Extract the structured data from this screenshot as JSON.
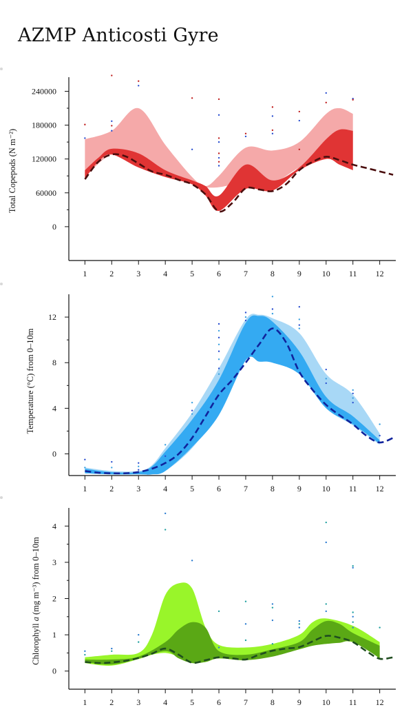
{
  "title": "AZMP Anticosti Gyre",
  "chart_data": [
    {
      "id": "copepods",
      "type": "area",
      "ylabel": "Total Copepods (N m⁻²)",
      "xlabel": "",
      "xlim": [
        0.4,
        12.6
      ],
      "ylim": [
        -60000,
        265000
      ],
      "x_ticks": [
        1,
        2,
        3,
        4,
        5,
        6,
        7,
        8,
        9,
        10,
        11,
        12
      ],
      "y_ticks": [
        0,
        60000,
        120000,
        180000,
        240000
      ],
      "y_tick_labels": [
        "0",
        "60000",
        "120000",
        "180000",
        "240000"
      ],
      "colors": {
        "outer": "#f5a9a9",
        "inner": "#e03434",
        "line": "#4a0e0e",
        "points": [
          "#c02020",
          "#2a4fd0"
        ]
      },
      "outer_band": {
        "x": [
          1,
          2,
          3,
          4,
          5,
          5.5,
          6,
          7,
          8,
          9,
          10,
          10.5,
          11
        ],
        "upper": [
          155000,
          170000,
          210000,
          145000,
          88000,
          72000,
          90000,
          140000,
          135000,
          150000,
          200000,
          210000,
          200000
        ],
        "lower": [
          88000,
          128000,
          115000,
          93000,
          75000,
          70000,
          70000,
          78000,
          77000,
          105000,
          125000,
          118000,
          100000
        ]
      },
      "inner_band": {
        "x": [
          1,
          1.5,
          2,
          3,
          4,
          5,
          5.5,
          6,
          7,
          8,
          9,
          10,
          10.5,
          11
        ],
        "upper": [
          100000,
          122000,
          138000,
          130000,
          100000,
          82000,
          72000,
          55000,
          110000,
          82000,
          105000,
          155000,
          172000,
          170000
        ],
        "lower": [
          85000,
          115000,
          128000,
          105000,
          88000,
          75000,
          55000,
          28000,
          67000,
          64000,
          100000,
          120000,
          110000,
          100000
        ]
      },
      "mean_line": {
        "x": [
          1,
          1.5,
          2,
          2.5,
          3,
          3.5,
          4,
          4.5,
          5,
          5.5,
          6,
          6.5,
          7,
          7.5,
          8,
          8.5,
          9,
          9.5,
          10,
          10.5,
          11,
          11.5,
          12,
          12.5
        ],
        "y": [
          84000,
          115000,
          128000,
          125000,
          112000,
          98000,
          92000,
          83000,
          75000,
          57000,
          27000,
          42000,
          68000,
          66000,
          63000,
          75000,
          100000,
          115000,
          124000,
          118000,
          110000,
          104000,
          98000,
          92000
        ]
      },
      "points": [
        {
          "x": 1,
          "y": 181000
        },
        {
          "x": 1,
          "y": 157000
        },
        {
          "x": 2,
          "y": 268000
        },
        {
          "x": 2,
          "y": 187000
        },
        {
          "x": 2,
          "y": 179000
        },
        {
          "x": 2,
          "y": 170000
        },
        {
          "x": 3,
          "y": 258000
        },
        {
          "x": 3,
          "y": 250000
        },
        {
          "x": 5,
          "y": 228000
        },
        {
          "x": 5,
          "y": 137000
        },
        {
          "x": 6,
          "y": 226000
        },
        {
          "x": 6,
          "y": 198000
        },
        {
          "x": 6,
          "y": 157000
        },
        {
          "x": 6,
          "y": 150000
        },
        {
          "x": 6,
          "y": 130000
        },
        {
          "x": 6,
          "y": 122000
        },
        {
          "x": 6,
          "y": 115000
        },
        {
          "x": 6,
          "y": 108000
        },
        {
          "x": 7,
          "y": 165000
        },
        {
          "x": 7,
          "y": 160000
        },
        {
          "x": 8,
          "y": 212000
        },
        {
          "x": 8,
          "y": 196000
        },
        {
          "x": 8,
          "y": 171000
        },
        {
          "x": 8,
          "y": 165000
        },
        {
          "x": 9,
          "y": 204000
        },
        {
          "x": 9,
          "y": 188000
        },
        {
          "x": 9,
          "y": 137000
        },
        {
          "x": 10,
          "y": 237000
        },
        {
          "x": 10,
          "y": 220000
        },
        {
          "x": 11,
          "y": 227000
        },
        {
          "x": 11,
          "y": 225000
        }
      ]
    },
    {
      "id": "temperature",
      "type": "area",
      "ylabel": "Temperature (°C) from 0–10m",
      "xlabel": "",
      "xlim": [
        0.4,
        12.6
      ],
      "ylim": [
        -1.9,
        14
      ],
      "x_ticks": [
        1,
        2,
        3,
        4,
        5,
        6,
        7,
        8,
        9,
        10,
        11,
        12
      ],
      "y_ticks": [
        0,
        4,
        8,
        12
      ],
      "y_tick_labels": [
        "0",
        "4",
        "8",
        "12"
      ],
      "colors": {
        "outer": "#a8d8f6",
        "inner": "#34aaf2",
        "line": "#10239c",
        "points": [
          "#2a4fd0",
          "#3aa0e0"
        ]
      },
      "outer_band": {
        "x": [
          1,
          2,
          3,
          3.5,
          4,
          5,
          6,
          7,
          7.5,
          8,
          9,
          10,
          11,
          12
        ],
        "upper": [
          -1.2,
          -1.5,
          -1.5,
          -1.0,
          0.5,
          3.6,
          7.5,
          11.8,
          12.2,
          11.9,
          10.6,
          7.0,
          5.2,
          1.8
        ],
        "lower": [
          -1.7,
          -1.8,
          -1.8,
          -1.8,
          -1.5,
          0.5,
          3.8,
          8.5,
          8.1,
          8.0,
          7.0,
          4.0,
          2.5,
          0.8
        ]
      },
      "inner_band": {
        "x": [
          1,
          2,
          3,
          3.5,
          4,
          5,
          6,
          7,
          7.5,
          8,
          9,
          10,
          11,
          12
        ],
        "upper": [
          -1.3,
          -1.6,
          -1.6,
          -1.1,
          0.2,
          3.0,
          6.5,
          11.5,
          12.1,
          11.6,
          9.0,
          5.0,
          3.3,
          1.2
        ],
        "lower": [
          -1.7,
          -1.8,
          -1.8,
          -1.8,
          -1.5,
          0.6,
          3.4,
          8.2,
          8.1,
          8.0,
          7.0,
          4.0,
          2.6,
          0.9
        ]
      },
      "mean_line": {
        "x": [
          1,
          1.5,
          2,
          2.5,
          3,
          3.5,
          4,
          4.5,
          5,
          5.5,
          6,
          6.5,
          7,
          7.5,
          8,
          8.5,
          9,
          9.5,
          10,
          10.5,
          11,
          11.5,
          12,
          12.5
        ],
        "y": [
          -1.5,
          -1.65,
          -1.7,
          -1.7,
          -1.6,
          -1.3,
          -0.8,
          0.0,
          1.4,
          3.3,
          5.2,
          6.5,
          8.0,
          9.6,
          11.0,
          9.8,
          7.2,
          5.6,
          4.3,
          3.4,
          2.6,
          1.6,
          1.0,
          1.4
        ]
      },
      "points": [
        {
          "x": 1,
          "y": -0.5
        },
        {
          "x": 1,
          "y": -1.2
        },
        {
          "x": 2,
          "y": -0.7
        },
        {
          "x": 2,
          "y": -1.2
        },
        {
          "x": 3,
          "y": -0.8
        },
        {
          "x": 3,
          "y": -1.1
        },
        {
          "x": 3,
          "y": -1.4
        },
        {
          "x": 4,
          "y": 0.8
        },
        {
          "x": 4,
          "y": -0.2
        },
        {
          "x": 5,
          "y": 4.5
        },
        {
          "x": 5,
          "y": 3.8
        },
        {
          "x": 5,
          "y": 3.5
        },
        {
          "x": 6,
          "y": 11.4
        },
        {
          "x": 6,
          "y": 10.8
        },
        {
          "x": 6,
          "y": 10.2
        },
        {
          "x": 6,
          "y": 9.6
        },
        {
          "x": 6,
          "y": 9.0
        },
        {
          "x": 6,
          "y": 8.3
        },
        {
          "x": 6,
          "y": 7.5
        },
        {
          "x": 6,
          "y": 7.0
        },
        {
          "x": 7,
          "y": 12.4
        },
        {
          "x": 7,
          "y": 12.0
        },
        {
          "x": 7,
          "y": 11.7
        },
        {
          "x": 8,
          "y": 13.8
        },
        {
          "x": 8,
          "y": 12.7
        },
        {
          "x": 8,
          "y": 12.3
        },
        {
          "x": 9,
          "y": 12.9
        },
        {
          "x": 9,
          "y": 11.8
        },
        {
          "x": 9,
          "y": 11.3
        },
        {
          "x": 9,
          "y": 11.0
        },
        {
          "x": 10,
          "y": 7.4
        },
        {
          "x": 10,
          "y": 6.6
        },
        {
          "x": 10,
          "y": 6.2
        },
        {
          "x": 11,
          "y": 5.6
        },
        {
          "x": 11,
          "y": 5.3
        },
        {
          "x": 11,
          "y": 4.9
        },
        {
          "x": 11,
          "y": 4.5
        },
        {
          "x": 12,
          "y": 2.6
        },
        {
          "x": 12,
          "y": 1.6
        }
      ]
    },
    {
      "id": "chlorophyll",
      "type": "area",
      "ylabel_parts": [
        "Chlorophyll ",
        "a",
        " (mg m⁻³) from 0–10m"
      ],
      "xlabel": "",
      "xlim": [
        0.4,
        12.6
      ],
      "ylim": [
        -0.5,
        4.5
      ],
      "x_ticks": [
        1,
        2,
        3,
        4,
        5,
        6,
        7,
        8,
        9,
        10,
        11,
        12
      ],
      "x_tick_labels": [
        "1",
        "2",
        "3",
        "4",
        "5",
        "6",
        "7",
        "8",
        "9",
        "10",
        "11",
        "12"
      ],
      "y_ticks": [
        0,
        1,
        2,
        3,
        4
      ],
      "y_tick_labels": [
        "0",
        "1",
        "2",
        "3",
        "4"
      ],
      "colors": {
        "outer": "#99f52a",
        "inner": "#5aa815",
        "line": "#1f4d1f",
        "points": [
          "#2a7bd0",
          "#20a0a0"
        ]
      },
      "outer_band": {
        "x": [
          1,
          2,
          3,
          3.5,
          4,
          4.5,
          5,
          5.5,
          6,
          7,
          8,
          9,
          9.5,
          10,
          11,
          12
        ],
        "upper": [
          0.38,
          0.45,
          0.5,
          1.0,
          2.1,
          2.42,
          2.28,
          1.2,
          0.72,
          0.65,
          0.75,
          1.0,
          1.35,
          1.45,
          1.25,
          0.8
        ],
        "lower": [
          0.22,
          0.15,
          0.33,
          0.45,
          0.5,
          0.4,
          0.25,
          0.25,
          0.35,
          0.3,
          0.42,
          0.6,
          0.7,
          0.75,
          0.8,
          0.35
        ]
      },
      "inner_band": {
        "x": [
          1,
          2,
          3,
          4,
          4.5,
          5,
          5.5,
          6,
          7,
          8,
          9,
          9.5,
          10,
          10.5,
          11,
          12
        ],
        "upper": [
          0.32,
          0.32,
          0.4,
          0.8,
          1.15,
          1.35,
          1.2,
          0.55,
          0.45,
          0.6,
          0.8,
          1.15,
          1.38,
          1.3,
          1.05,
          0.7
        ],
        "lower": [
          0.25,
          0.18,
          0.34,
          0.55,
          0.35,
          0.22,
          0.25,
          0.35,
          0.3,
          0.4,
          0.6,
          0.7,
          0.75,
          0.78,
          0.8,
          0.36
        ]
      },
      "mean_line": {
        "x": [
          1,
          1.5,
          2,
          2.5,
          3,
          3.5,
          4,
          4.5,
          5,
          5.5,
          6,
          6.5,
          7,
          7.5,
          8,
          8.5,
          9,
          9.5,
          10,
          10.5,
          11,
          11.5,
          12,
          12.5
        ],
        "y": [
          0.25,
          0.22,
          0.24,
          0.28,
          0.36,
          0.48,
          0.62,
          0.45,
          0.23,
          0.3,
          0.38,
          0.35,
          0.32,
          0.45,
          0.56,
          0.62,
          0.66,
          0.82,
          0.97,
          0.92,
          0.8,
          0.55,
          0.34,
          0.38
        ]
      },
      "points": [
        {
          "x": 1,
          "y": 0.55
        },
        {
          "x": 1,
          "y": 0.45
        },
        {
          "x": 2,
          "y": 0.62
        },
        {
          "x": 2,
          "y": 0.55
        },
        {
          "x": 3,
          "y": 1.0
        },
        {
          "x": 3,
          "y": 0.8
        },
        {
          "x": 4,
          "y": 4.35
        },
        {
          "x": 4,
          "y": 3.9
        },
        {
          "x": 5,
          "y": 3.05
        },
        {
          "x": 6,
          "y": 1.65
        },
        {
          "x": 6,
          "y": 0.65
        },
        {
          "x": 7,
          "y": 1.92
        },
        {
          "x": 7,
          "y": 1.3
        },
        {
          "x": 7,
          "y": 0.85
        },
        {
          "x": 8,
          "y": 1.85
        },
        {
          "x": 8,
          "y": 1.75
        },
        {
          "x": 8,
          "y": 1.4
        },
        {
          "x": 8,
          "y": 0.75
        },
        {
          "x": 9,
          "y": 1.38
        },
        {
          "x": 9,
          "y": 1.3
        },
        {
          "x": 9,
          "y": 1.2
        },
        {
          "x": 10,
          "y": 4.1
        },
        {
          "x": 10,
          "y": 3.55
        },
        {
          "x": 10,
          "y": 1.85
        },
        {
          "x": 10,
          "y": 1.65
        },
        {
          "x": 11,
          "y": 2.9
        },
        {
          "x": 11,
          "y": 2.85
        },
        {
          "x": 11,
          "y": 1.62
        },
        {
          "x": 11,
          "y": 1.5
        },
        {
          "x": 11,
          "y": 1.35
        },
        {
          "x": 11,
          "y": 1.2
        },
        {
          "x": 12,
          "y": 1.2
        }
      ]
    }
  ]
}
